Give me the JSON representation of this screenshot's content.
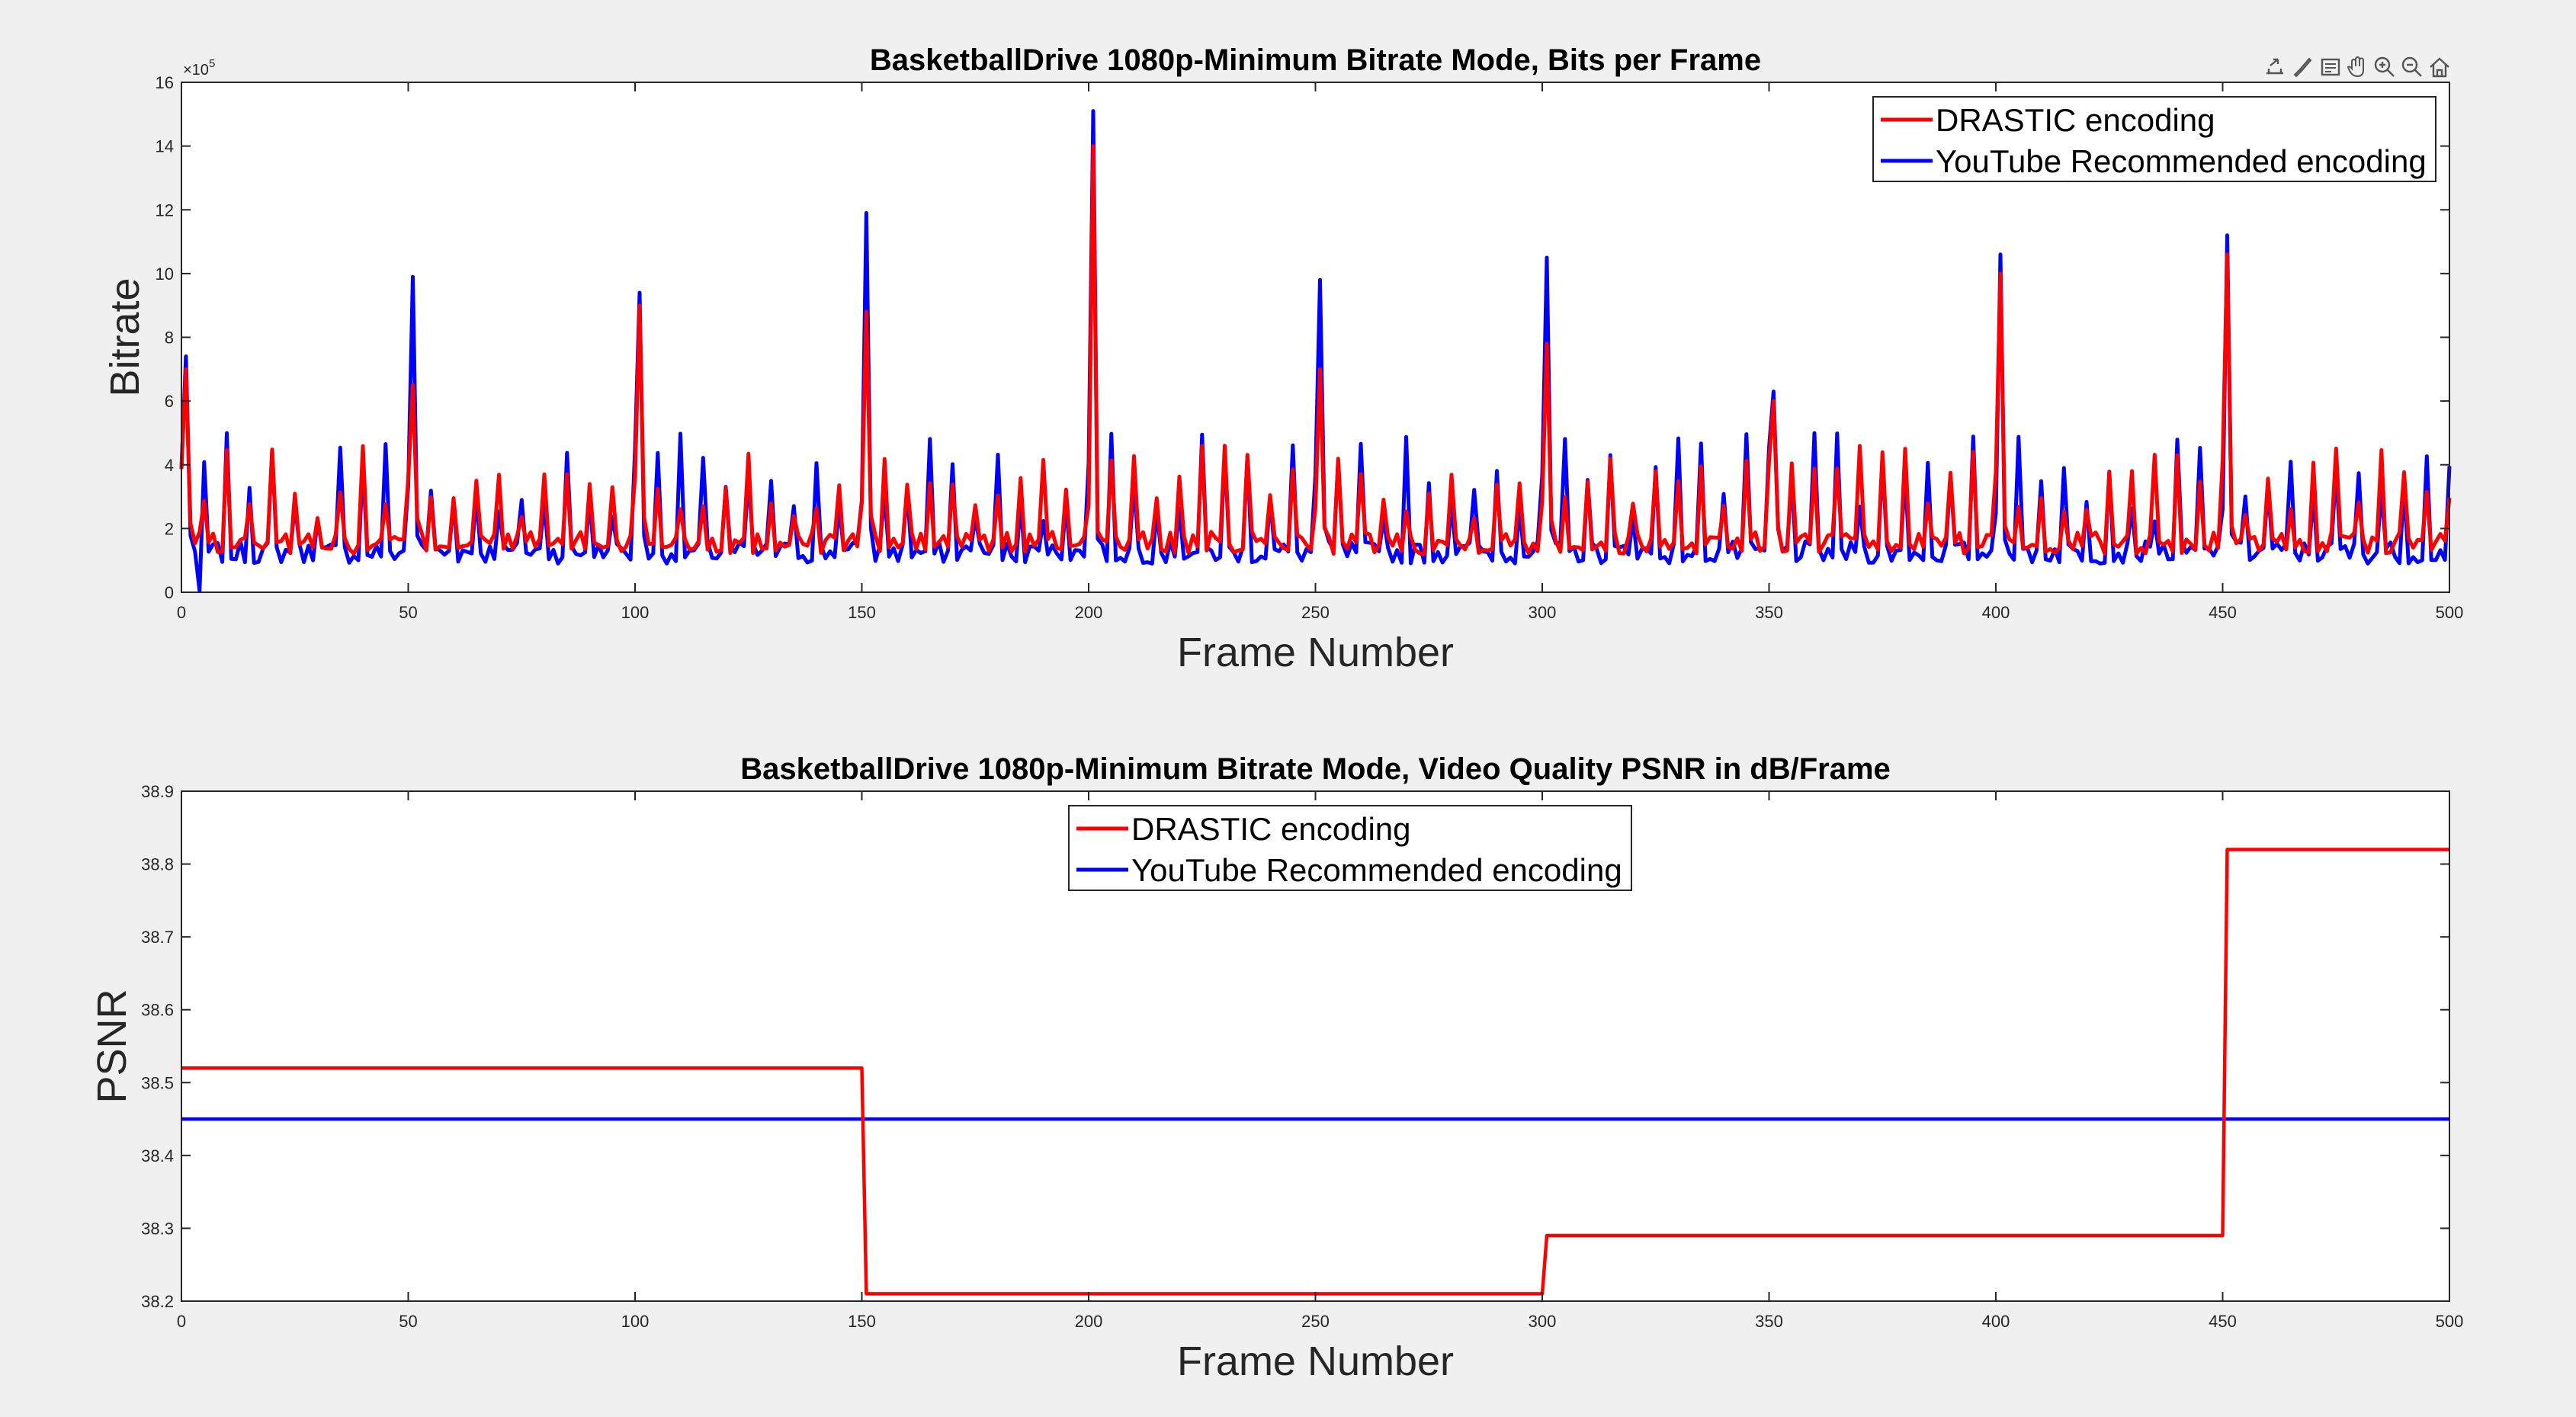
{
  "colors": {
    "drastic": "#ff0000",
    "youtube": "#0000ff",
    "axes": "#262626",
    "grid": "#000000"
  },
  "toolbar": {
    "icons": [
      "export-icon",
      "brush-icon",
      "data-tip-icon",
      "pan-icon",
      "zoom-in-icon",
      "zoom-out-icon",
      "home-icon"
    ]
  },
  "chart_data": [
    {
      "type": "line",
      "title": "BasketballDrive 1080p-Minimum Bitrate Mode, Bits per Frame",
      "xlabel": "Frame Number",
      "ylabel": "Bitrate",
      "y_exponent": "×10",
      "y_exponent_power": "5",
      "xlim": [
        0,
        500
      ],
      "ylim": [
        0,
        16
      ],
      "xticks": [
        0,
        50,
        100,
        150,
        200,
        250,
        300,
        350,
        400,
        450,
        500
      ],
      "yticks": [
        0,
        2,
        4,
        6,
        8,
        10,
        12,
        14,
        16
      ],
      "legend_position": "top-right",
      "grid": false,
      "series": [
        {
          "name": "DRASTIC encoding",
          "color": "#ff0000",
          "gop": 5,
          "baseline": [
            1.2,
            1.9
          ],
          "peak": [
            2.3,
            4.6
          ],
          "keyframes": [
            [
              1,
              7.0
            ],
            [
              51,
              6.5
            ],
            [
              101,
              9.0
            ],
            [
              151,
              8.8
            ],
            [
              201,
              14.0
            ],
            [
              251,
              7.0
            ],
            [
              301,
              7.8
            ],
            [
              351,
              6.0
            ],
            [
              401,
              10.0
            ],
            [
              451,
              10.6
            ]
          ]
        },
        {
          "name": "YouTube Recommended encoding",
          "color": "#0000ff",
          "gop": 5,
          "baseline": [
            0.9,
            1.6
          ],
          "peak": [
            2.2,
            5.0
          ],
          "keyframes": [
            [
              1,
              7.4
            ],
            [
              51,
              9.9
            ],
            [
              101,
              9.4
            ],
            [
              151,
              11.9
            ],
            [
              201,
              15.1
            ],
            [
              251,
              9.8
            ],
            [
              301,
              10.5
            ],
            [
              351,
              6.3
            ],
            [
              401,
              10.6
            ],
            [
              451,
              11.2
            ]
          ]
        }
      ]
    },
    {
      "type": "line",
      "title": "BasketballDrive 1080p-Minimum Bitrate Mode, Video Quality PSNR in dB/Frame",
      "xlabel": "Frame Number",
      "ylabel": "PSNR",
      "xlim": [
        0,
        500
      ],
      "ylim": [
        38.2,
        38.9
      ],
      "xticks": [
        0,
        50,
        100,
        150,
        200,
        250,
        300,
        350,
        400,
        450,
        500
      ],
      "yticks": [
        38.2,
        38.3,
        38.4,
        38.5,
        38.6,
        38.7,
        38.8,
        38.9
      ],
      "legend_position": "top-center",
      "grid": false,
      "series": [
        {
          "name": "DRASTIC encoding",
          "color": "#ff0000",
          "x": [
            0,
            150,
            151,
            300,
            301,
            450,
            451,
            500
          ],
          "y": [
            38.52,
            38.52,
            38.21,
            38.21,
            38.29,
            38.29,
            38.82,
            38.82
          ]
        },
        {
          "name": "YouTube Recommended encoding",
          "color": "#0000ff",
          "x": [
            0,
            500
          ],
          "y": [
            38.45,
            38.45
          ]
        }
      ]
    }
  ]
}
